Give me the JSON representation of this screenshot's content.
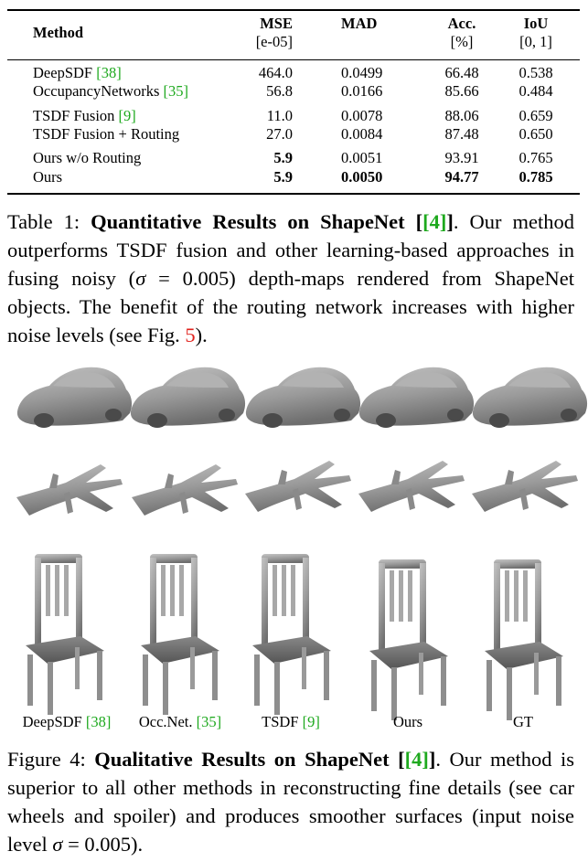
{
  "table": {
    "headers": {
      "method": "Method",
      "mse": "MSE",
      "mse_unit": "[e-05]",
      "mad": "MAD",
      "acc": "Acc.",
      "acc_unit": "[%]",
      "iou": "IoU",
      "iou_unit": "[0, 1]"
    },
    "rows": [
      {
        "method": "DeepSDF",
        "cite": "[38]",
        "mse": "464.0",
        "mad": "0.0499",
        "acc": "66.48",
        "iou": "0.538"
      },
      {
        "method": "OccupancyNetworks",
        "cite": "[35]",
        "mse": "56.8",
        "mad": "0.0166",
        "acc": "85.66",
        "iou": "0.484"
      },
      {
        "method": "TSDF Fusion",
        "cite": "[9]",
        "mse": "11.0",
        "mad": "0.0078",
        "acc": "88.06",
        "iou": "0.659"
      },
      {
        "method": "TSDF Fusion + Routing",
        "cite": "",
        "mse": "27.0",
        "mad": "0.0084",
        "acc": "87.48",
        "iou": "0.650"
      },
      {
        "method": "Ours w/o Routing",
        "cite": "",
        "mse": "5.9",
        "mad": "0.0051",
        "acc": "93.91",
        "iou": "0.765"
      },
      {
        "method": "Ours",
        "cite": "",
        "mse": "5.9",
        "mad": "0.0050",
        "acc": "94.77",
        "iou": "0.785"
      }
    ]
  },
  "caption1": {
    "label": "Table 1:",
    "title": "Quantitative Results on ShapeNet",
    "cite": "[4]",
    "text_a": ". Our method outperforms TSDF fusion and other learning-based approaches in fusing noisy (",
    "sigma": "σ",
    "text_b": " = 0.005) depth-maps rendered from ShapeNet objects. The benefit of the routing network increases with higher noise levels (see Fig. ",
    "figref": "5",
    "text_c": ")."
  },
  "figure": {
    "columns": [
      {
        "label": "DeepSDF",
        "cite": "[38]"
      },
      {
        "label": "Occ.Net.",
        "cite": "[35]"
      },
      {
        "label": "TSDF",
        "cite": "[9]"
      },
      {
        "label": "Ours",
        "cite": ""
      },
      {
        "label": "GT",
        "cite": ""
      }
    ]
  },
  "caption2": {
    "label": "Figure 4:",
    "title": "Qualitative Results on ShapeNet",
    "cite": "[4]",
    "text_a": ". Our method is superior to all other methods in reconstructing fine details (see car wheels and spoiler) and produces smoother surfaces (input noise level ",
    "sigma": "σ",
    "text_b": " = 0.005)."
  }
}
